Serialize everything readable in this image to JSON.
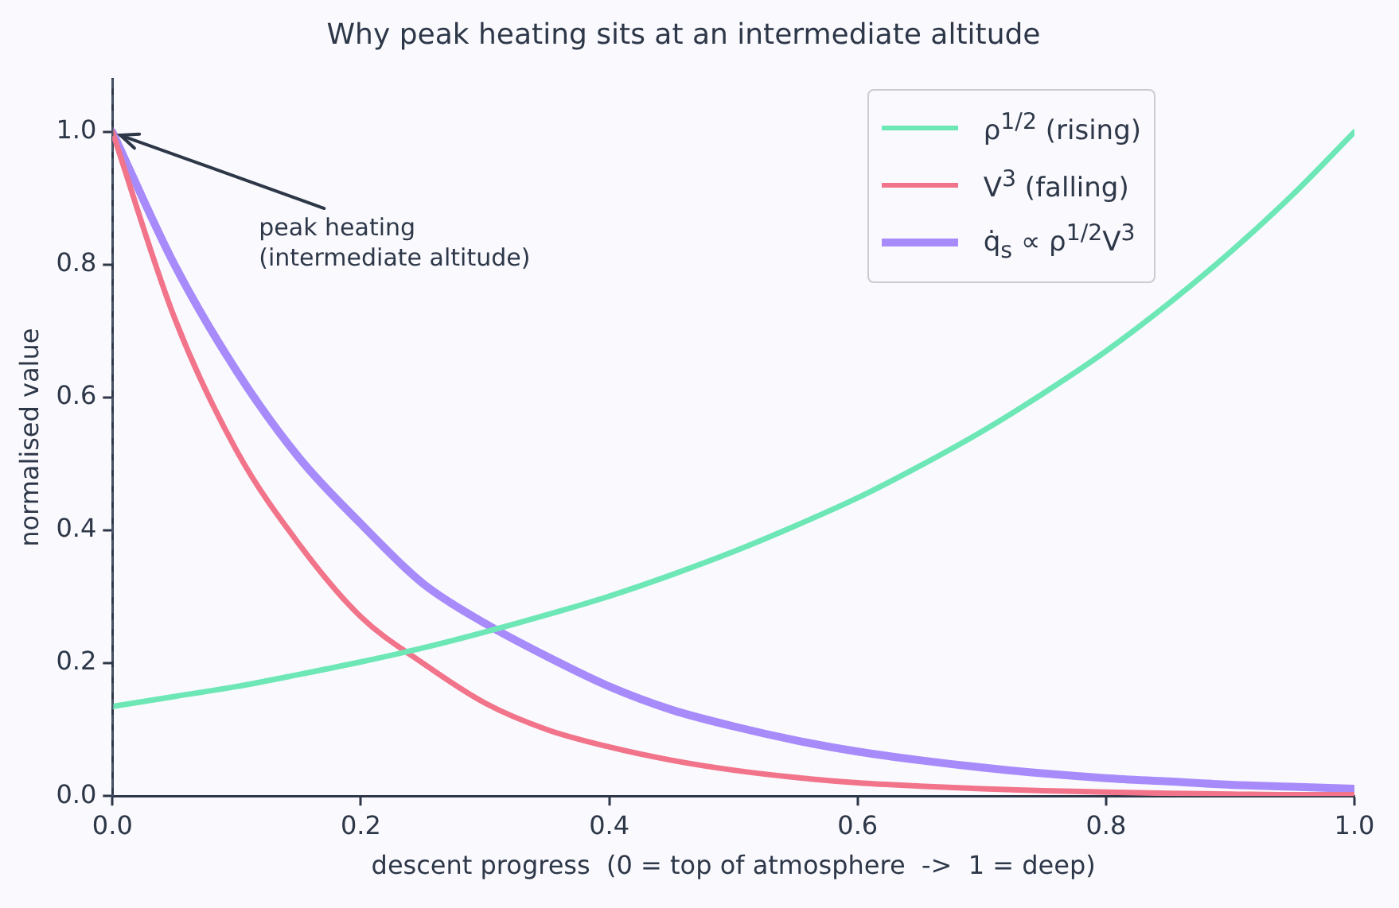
{
  "chart_data": {
    "type": "line",
    "title": "Why peak heating sits at an intermediate altitude",
    "xlabel": "descent progress  (0 = top of atmosphere  ->  1 = deep)",
    "ylabel": "normalised value",
    "x": [
      0,
      0.05,
      0.1,
      0.15,
      0.2,
      0.25,
      0.3,
      0.35,
      0.4,
      0.45,
      0.5,
      0.55,
      0.6,
      0.65,
      0.7,
      0.75,
      0.8,
      0.85,
      0.9,
      0.95,
      1
    ],
    "series": [
      {
        "name": "ρ$^{1/2}$ (rising)",
        "color": "#6ee7b7",
        "values": [
          0.135,
          0.15,
          0.165,
          0.183,
          0.202,
          0.223,
          0.247,
          0.273,
          0.301,
          0.333,
          0.368,
          0.407,
          0.449,
          0.497,
          0.549,
          0.607,
          0.67,
          0.741,
          0.819,
          0.905,
          1.0
        ]
      },
      {
        "name": "V$^{3}$ (falling)",
        "color": "#f2748a",
        "values": [
          1.0,
          0.72,
          0.52,
          0.38,
          0.27,
          0.2,
          0.14,
          0.1,
          0.074,
          0.054,
          0.039,
          0.028,
          0.02,
          0.015,
          0.011,
          0.008,
          0.006,
          0.004,
          0.003,
          0.002,
          0.002
        ]
      },
      {
        "name": "q̇$_{s}$ ∝ ρ$^{1/2}$V$^{3}$",
        "color": "#a78bfa",
        "values": [
          1.0,
          0.8,
          0.64,
          0.51,
          0.41,
          0.32,
          0.26,
          0.21,
          0.165,
          0.13,
          0.105,
          0.084,
          0.067,
          0.054,
          0.043,
          0.034,
          0.027,
          0.022,
          0.017,
          0.014,
          0.011
        ]
      }
    ],
    "xlim": [
      0,
      1
    ],
    "ylim": [
      0,
      1.08
    ],
    "xticks": [
      {
        "value": 0,
        "label": "0.0"
      },
      {
        "value": 0.2,
        "label": "0.2"
      },
      {
        "value": 0.4,
        "label": "0.4"
      },
      {
        "value": 0.6,
        "label": "0.6"
      },
      {
        "value": 0.8,
        "label": "0.8"
      },
      {
        "value": 1,
        "label": "1.0"
      }
    ],
    "yticks": [
      {
        "value": 0,
        "label": "0.0"
      },
      {
        "value": 0.2,
        "label": "0.2"
      },
      {
        "value": 0.4,
        "label": "0.4"
      },
      {
        "value": 0.6,
        "label": "0.6"
      },
      {
        "value": 0.8,
        "label": "0.8"
      },
      {
        "value": 1,
        "label": "1.0"
      }
    ],
    "ref_lines": [
      {
        "axis": "x",
        "value": 0,
        "line_style": "dashed",
        "color": "#4a5568"
      }
    ],
    "annotations": [
      {
        "text": "peak heating\n(intermediate altitude)",
        "x": 0,
        "y": 1
      }
    ],
    "grid": false,
    "legend": "top right",
    "marker": "none",
    "line_style": "solid"
  }
}
